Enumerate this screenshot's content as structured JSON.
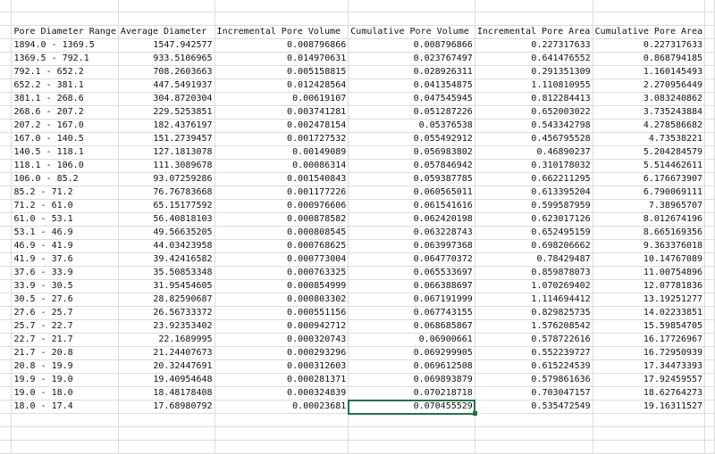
{
  "sheet": {
    "headers": [
      "Pore Diameter Range",
      "Average Diameter",
      "Incremental Pore Volume",
      "Cumulative Pore Volume",
      "Incremental Pore Area",
      "Cumulative Pore Area"
    ],
    "rows": [
      [
        "1894.0 - 1369.5",
        "1547.942577",
        "0.008796866",
        "0.008796866",
        "0.227317633",
        "0.227317633"
      ],
      [
        "1369.5 - 792.1",
        "933.5106965",
        "0.014970631",
        "0.023767497",
        "0.641476552",
        "0.868794185"
      ],
      [
        "792.1 - 652.2",
        "708.2603663",
        "0.005158815",
        "0.028926311",
        "0.291351309",
        "1.160145493"
      ],
      [
        "652.2 - 381.1",
        "447.5491937",
        "0.012428564",
        "0.041354875",
        "1.110810955",
        "2.270956449"
      ],
      [
        "381.1 - 268.6",
        "304.8720304",
        "0.00619107",
        "0.047545945",
        "0.812284413",
        "3.083240862"
      ],
      [
        "268.6 - 207.2",
        "229.5253851",
        "0.003741281",
        "0.051287226",
        "0.652003022",
        "3.735243884"
      ],
      [
        "207.2 - 167.0",
        "182.4376197",
        "0.002478154",
        "0.05376538",
        "0.543342798",
        "4.278586682"
      ],
      [
        "167.0 - 140.5",
        "151.2739457",
        "0.001727532",
        "0.055492912",
        "0.456795528",
        "4.73538221"
      ],
      [
        "140.5 - 118.1",
        "127.1813078",
        "0.00149089",
        "0.056983802",
        "0.46890237",
        "5.204284579"
      ],
      [
        "118.1 - 106.0",
        "111.3089678",
        "0.00086314",
        "0.057846942",
        "0.310178032",
        "5.514462611"
      ],
      [
        "106.0 - 85.2",
        "93.07259286",
        "0.001540843",
        "0.059387785",
        "0.662211295",
        "6.176673907"
      ],
      [
        "85.2 - 71.2",
        "76.76783668",
        "0.001177226",
        "0.060565011",
        "0.613395204",
        "6.790069111"
      ],
      [
        "71.2 - 61.0",
        "65.15177592",
        "0.000976606",
        "0.061541616",
        "0.599587959",
        "7.38965707"
      ],
      [
        "61.0 - 53.1",
        "56.40818103",
        "0.000878582",
        "0.062420198",
        "0.623017126",
        "8.012674196"
      ],
      [
        "53.1 - 46.9",
        "49.56635205",
        "0.000808545",
        "0.063228743",
        "0.652495159",
        "8.665169356"
      ],
      [
        "46.9 - 41.9",
        "44.03423958",
        "0.000768625",
        "0.063997368",
        "0.698206662",
        "9.363376018"
      ],
      [
        "41.9 - 37.6",
        "39.42416582",
        "0.000773004",
        "0.064770372",
        "0.78429487",
        "10.14767089"
      ],
      [
        "37.6 - 33.9",
        "35.50853348",
        "0.000763325",
        "0.065533697",
        "0.859878073",
        "11.00754896"
      ],
      [
        "33.9 - 30.5",
        "31.95454605",
        "0.000854999",
        "0.066388697",
        "1.070269402",
        "12.07781836"
      ],
      [
        "30.5 - 27.6",
        "28.82590687",
        "0.000803302",
        "0.067191999",
        "1.114694412",
        "13.19251277"
      ],
      [
        "27.6 - 25.7",
        "26.56733372",
        "0.000551156",
        "0.067743155",
        "0.829825735",
        "14.02233851"
      ],
      [
        "25.7 - 22.7",
        "23.92353402",
        "0.000942712",
        "0.068685867",
        "1.576208542",
        "15.59854705"
      ],
      [
        "22.7 - 21.7",
        "22.1689995",
        "0.000320743",
        "0.06900661",
        "0.578722616",
        "16.17726967"
      ],
      [
        "21.7 - 20.8",
        "21.24407673",
        "0.000293296",
        "0.069299905",
        "0.552239727",
        "16.72950939"
      ],
      [
        "20.8 - 19.9",
        "20.32447691",
        "0.000312603",
        "0.069612508",
        "0.615224539",
        "17.34473393"
      ],
      [
        "19.9 - 19.0",
        "19.40954648",
        "0.000281371",
        "0.069893879",
        "0.579861636",
        "17.92459557"
      ],
      [
        "19.0 - 18.0",
        "18.48178408",
        "0.000324839",
        "0.070218718",
        "0.703047157",
        "18.62764273"
      ],
      [
        "18.0 - 17.4",
        "17.68980792",
        "0.00023681",
        "0.070455529",
        "0.535472549",
        "19.16311527"
      ]
    ],
    "selected_cell": {
      "row": 27,
      "col": 3
    },
    "selection_color": "#217346"
  }
}
